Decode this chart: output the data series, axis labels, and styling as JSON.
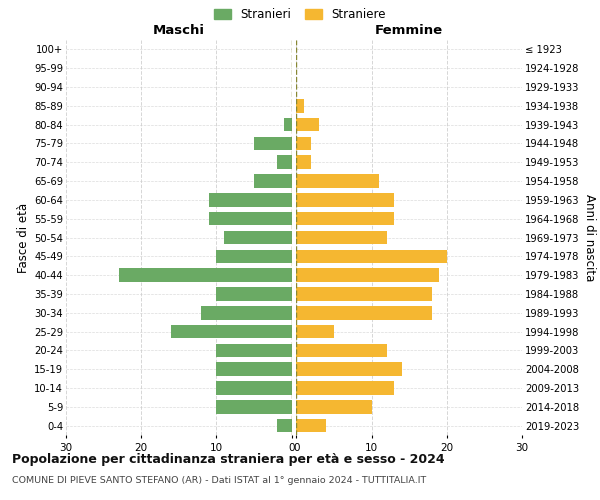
{
  "age_groups": [
    "100+",
    "95-99",
    "90-94",
    "85-89",
    "80-84",
    "75-79",
    "70-74",
    "65-69",
    "60-64",
    "55-59",
    "50-54",
    "45-49",
    "40-44",
    "35-39",
    "30-34",
    "25-29",
    "20-24",
    "15-19",
    "10-14",
    "5-9",
    "0-4"
  ],
  "birth_years": [
    "≤ 1923",
    "1924-1928",
    "1929-1933",
    "1934-1938",
    "1939-1943",
    "1944-1948",
    "1949-1953",
    "1954-1958",
    "1959-1963",
    "1964-1968",
    "1969-1973",
    "1974-1978",
    "1979-1983",
    "1984-1988",
    "1989-1993",
    "1994-1998",
    "1999-2003",
    "2004-2008",
    "2009-2013",
    "2014-2018",
    "2019-2023"
  ],
  "males": [
    0,
    0,
    0,
    0,
    1,
    5,
    2,
    5,
    11,
    11,
    9,
    10,
    23,
    10,
    12,
    16,
    10,
    10,
    10,
    10,
    2
  ],
  "females": [
    0,
    0,
    0,
    1,
    3,
    2,
    2,
    11,
    13,
    13,
    12,
    20,
    19,
    18,
    18,
    5,
    12,
    14,
    13,
    10,
    4
  ],
  "male_color": "#6aaa64",
  "female_color": "#f5b731",
  "background_color": "#ffffff",
  "grid_color": "#cccccc",
  "title": "Popolazione per cittadinanza straniera per età e sesso - 2024",
  "subtitle": "COMUNE DI PIEVE SANTO STEFANO (AR) - Dati ISTAT al 1° gennaio 2024 - TUTTITALIA.IT",
  "xlabel_left": "Maschi",
  "xlabel_right": "Femmine",
  "ylabel_left": "Fasce di età",
  "ylabel_right": "Anni di nascita",
  "legend_stranieri": "Stranieri",
  "legend_straniere": "Straniere",
  "xlim": 30
}
